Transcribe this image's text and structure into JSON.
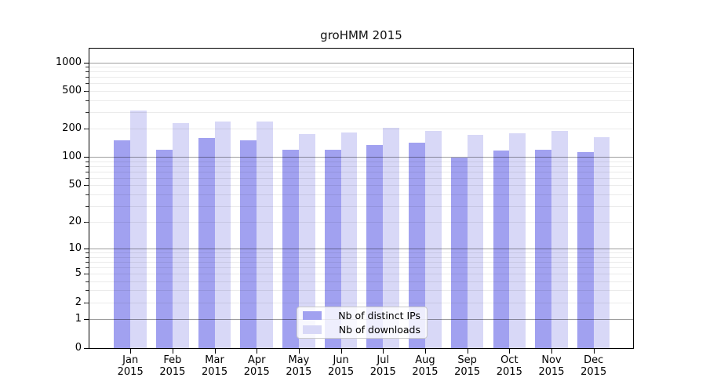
{
  "title": "groHMM 2015",
  "chart_data": {
    "type": "bar",
    "title": "groHMM 2015",
    "categories": [
      "Jan 2015",
      "Feb 2015",
      "Mar 2015",
      "Apr 2015",
      "May 2015",
      "Jun 2015",
      "Jul 2015",
      "Aug 2015",
      "Sep 2015",
      "Oct 2015",
      "Nov 2015",
      "Dec 2015"
    ],
    "x_tick_line1": [
      "Jan",
      "Feb",
      "Mar",
      "Apr",
      "May",
      "Jun",
      "Jul",
      "Aug",
      "Sep",
      "Oct",
      "Nov",
      "Dec"
    ],
    "x_tick_line2": [
      "2015",
      "2015",
      "2015",
      "2015",
      "2015",
      "2015",
      "2015",
      "2015",
      "2015",
      "2015",
      "2015",
      "2015"
    ],
    "series": [
      {
        "name": "Nb of distinct IPs",
        "color": "#a1a1f0",
        "values": [
          150,
          119,
          160,
          150,
          120,
          119,
          135,
          141,
          98,
          118,
          120,
          113
        ]
      },
      {
        "name": "Nb of downloads",
        "color": "#d8d8f7",
        "values": [
          310,
          230,
          240,
          237,
          176,
          182,
          204,
          188,
          171,
          178,
          191,
          162
        ]
      }
    ],
    "y_scale": "log1p",
    "y_ticks": [
      0,
      1,
      2,
      5,
      10,
      20,
      50,
      100,
      200,
      500,
      1000
    ],
    "y_major_gridlines": [
      1,
      10,
      100,
      1000
    ],
    "y_minor_gridlines": [
      2,
      3,
      4,
      5,
      6,
      7,
      8,
      9,
      20,
      30,
      40,
      50,
      60,
      70,
      80,
      90,
      200,
      300,
      400,
      500,
      600,
      700,
      800,
      900
    ],
    "ylim": [
      0,
      1430
    ],
    "xlabel": "",
    "ylabel": "",
    "grid": "horizontal",
    "legend_position": "inside-bottom-center"
  },
  "colors": {
    "bar_distinct_ips": "#a1a1f0",
    "bar_downloads": "#d8d8f7",
    "grid_major": "rgba(0,0,0,0.38)",
    "grid_minor": "rgba(0,0,0,0.08)",
    "spine": "#000000",
    "text": "#000000"
  }
}
